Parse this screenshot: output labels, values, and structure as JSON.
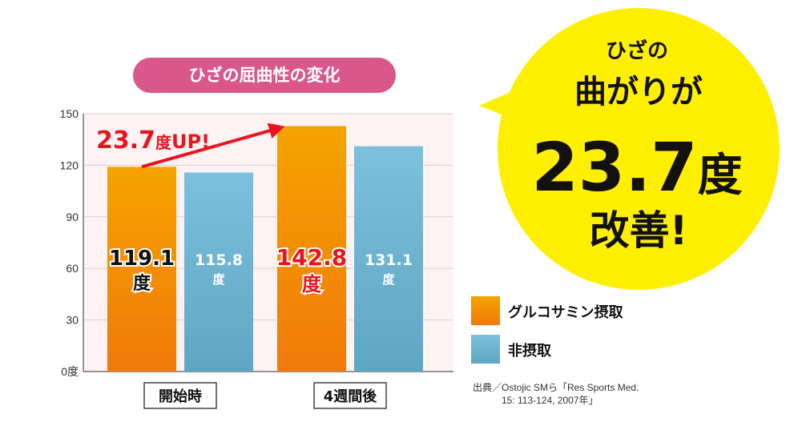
{
  "title": "ひざの屈曲性の変化",
  "colors": {
    "pill": "#d9578a",
    "glucosamine_top": "#f5a300",
    "glucosamine_bottom": "#f07a0a",
    "none_top": "#7cc0dc",
    "none_bottom": "#5ea7c4",
    "plot_bg": "#fdf3f4",
    "highlight_red": "#e8141e",
    "bubble": "#ffef00"
  },
  "chart_data": {
    "type": "bar",
    "y_unit": "度",
    "ylim": [
      0,
      150
    ],
    "yticks": [
      "0度",
      "30",
      "60",
      "90",
      "120",
      "150"
    ],
    "categories": [
      "開始時",
      "4週間後"
    ],
    "series": [
      {
        "name": "グルコサミン摂取",
        "values": [
          119.1,
          142.8
        ]
      },
      {
        "name": "非摂取",
        "values": [
          115.8,
          131.1
        ]
      }
    ],
    "value_labels": [
      [
        "119.1",
        "142.8"
      ],
      [
        "115.8",
        "131.1"
      ]
    ],
    "grid": true,
    "legend_position": "right",
    "annotation": {
      "number": "23.7",
      "unit": "度",
      "suffix": "UP!"
    }
  },
  "bubble": {
    "line1": "ひざの",
    "line2": "曲がりが",
    "number": "23.7",
    "unit": "度",
    "line4": "改善!"
  },
  "source": {
    "line1": "出典／Ostojic SMら「Res Sports Med.",
    "line2": "15: 113-124, 2007年」"
  }
}
